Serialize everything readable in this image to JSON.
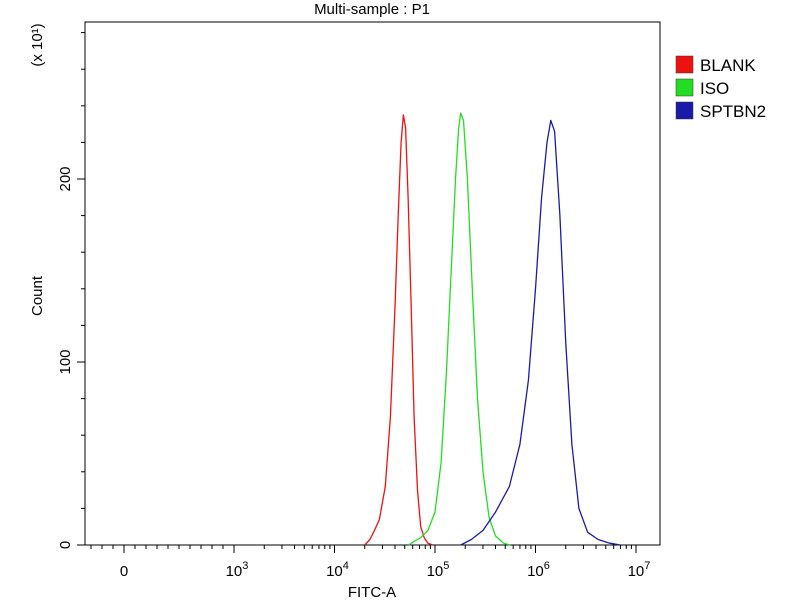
{
  "chart_data": {
    "type": "line",
    "title": "Multi-sample : P1",
    "xlabel": "FITC-A",
    "ylabel": "Count",
    "y_multiplier_label": "(x 10¹)",
    "x_scale": "biexponential (log above 10^3)",
    "x_ticks": [
      {
        "value": 0,
        "label": "0"
      },
      {
        "value": 1000,
        "label": "10",
        "exp": "3"
      },
      {
        "value": 10000,
        "label": "10",
        "exp": "4"
      },
      {
        "value": 100000,
        "label": "10",
        "exp": "5"
      },
      {
        "value": 1000000,
        "label": "10",
        "exp": "6"
      },
      {
        "value": 10000000,
        "label": "10",
        "exp": "7"
      }
    ],
    "y_ticks": [
      {
        "value": 0,
        "label": "0"
      },
      {
        "value": 100,
        "label": "100"
      },
      {
        "value": 200,
        "label": "200"
      }
    ],
    "ylim": [
      0,
      284
    ],
    "grid": false,
    "legend_position": "right",
    "series": [
      {
        "name": "BLANK",
        "color": "#ee1111",
        "points": [
          [
            20000,
            0
          ],
          [
            22500,
            3
          ],
          [
            25000,
            8
          ],
          [
            28000,
            14
          ],
          [
            32000,
            32
          ],
          [
            36000,
            70
          ],
          [
            40000,
            130
          ],
          [
            43000,
            180
          ],
          [
            46000,
            220
          ],
          [
            48500,
            235
          ],
          [
            51000,
            228
          ],
          [
            54000,
            190
          ],
          [
            58000,
            130
          ],
          [
            62000,
            70
          ],
          [
            67000,
            30
          ],
          [
            72000,
            10
          ],
          [
            78000,
            4
          ],
          [
            85000,
            1
          ],
          [
            95000,
            0
          ]
        ]
      },
      {
        "name": "ISO",
        "color": "#22dd22",
        "points": [
          [
            55000,
            0
          ],
          [
            62000,
            2
          ],
          [
            72000,
            4
          ],
          [
            85000,
            8
          ],
          [
            100000,
            18
          ],
          [
            115000,
            45
          ],
          [
            130000,
            95
          ],
          [
            145000,
            150
          ],
          [
            160000,
            200
          ],
          [
            172000,
            228
          ],
          [
            180000,
            236
          ],
          [
            192000,
            232
          ],
          [
            210000,
            200
          ],
          [
            235000,
            140
          ],
          [
            265000,
            80
          ],
          [
            300000,
            40
          ],
          [
            345000,
            15
          ],
          [
            400000,
            5
          ],
          [
            480000,
            1
          ],
          [
            560000,
            0
          ]
        ]
      },
      {
        "name": "SPTBN2",
        "color": "#1a1aaa",
        "points": [
          [
            180000,
            0
          ],
          [
            230000,
            3
          ],
          [
            300000,
            8
          ],
          [
            400000,
            18
          ],
          [
            550000,
            32
          ],
          [
            700000,
            55
          ],
          [
            850000,
            90
          ],
          [
            1000000,
            140
          ],
          [
            1150000,
            190
          ],
          [
            1300000,
            220
          ],
          [
            1420000,
            232
          ],
          [
            1550000,
            226
          ],
          [
            1750000,
            180
          ],
          [
            2000000,
            110
          ],
          [
            2300000,
            55
          ],
          [
            2700000,
            20
          ],
          [
            3300000,
            7
          ],
          [
            4200000,
            3
          ],
          [
            5500000,
            1
          ],
          [
            7000000,
            0
          ]
        ]
      }
    ]
  }
}
